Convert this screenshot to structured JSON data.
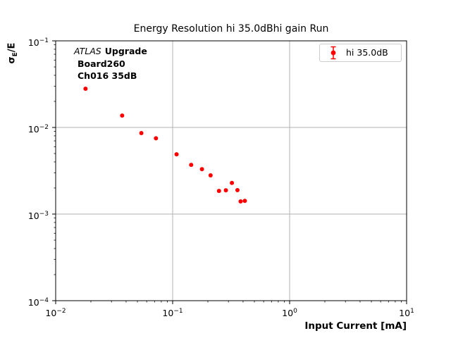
{
  "chart_data": {
    "type": "scatter",
    "title": "Energy Resolution hi 35.0dBhi gain Run",
    "xlabel": "Input Current [mA]",
    "ylabel_parts": {
      "main": "σ",
      "sub": "E",
      "suffix": "/E"
    },
    "xscale": "log",
    "yscale": "log",
    "xlim": [
      0.01,
      10
    ],
    "ylim": [
      0.0001,
      0.1
    ],
    "x_tick_exponents": [
      -2,
      -1,
      0,
      1
    ],
    "y_tick_exponents": [
      -1,
      -2,
      -3,
      -4
    ],
    "grid": true,
    "grid_color": "#b0b0b0",
    "spine_color": "#000000",
    "annotation": {
      "atlas": "ATLAS",
      "upgrade": "Upgrade",
      "line2": "Board260",
      "line3": "Ch016 35dB"
    },
    "legend": {
      "position": "upper right",
      "entries": [
        {
          "label": "hi 35.0dB",
          "color": "#ff0000",
          "marker": "errorbar-dot"
        }
      ]
    },
    "series": [
      {
        "name": "hi 35.0dB",
        "color": "#ff0000",
        "marker": "circle",
        "x": [
          0.018,
          0.037,
          0.054,
          0.072,
          0.108,
          0.144,
          0.178,
          0.211,
          0.249,
          0.285,
          0.321,
          0.358,
          0.381,
          0.414
        ],
        "y": [
          0.028,
          0.0137,
          0.0086,
          0.0075,
          0.0049,
          0.0037,
          0.0033,
          0.0028,
          0.00185,
          0.00188,
          0.00229,
          0.00189,
          0.0014,
          0.00142
        ]
      }
    ]
  }
}
